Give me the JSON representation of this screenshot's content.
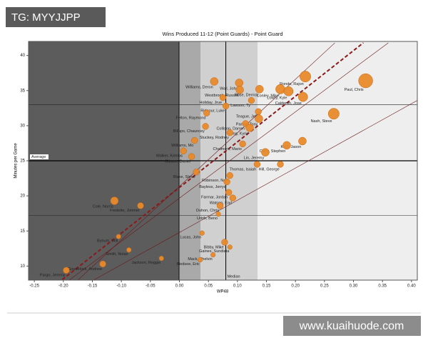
{
  "watermarks": {
    "top": "TG: MYYJJPP",
    "bottom": "www.kuaihuode.com"
  },
  "chart_data": {
    "type": "scatter",
    "title": "Wins Produced 11-12 (Point Guards) - Point Guard",
    "x_label": "WP48",
    "y_label": "Minutes per Game",
    "xlim": [
      -0.26,
      0.41
    ],
    "ylim": [
      8,
      42
    ],
    "xticks": [
      {
        "value": -0.25,
        "label": "-0.25"
      },
      {
        "value": -0.2,
        "label": "-0.20"
      },
      {
        "value": -0.15,
        "label": "-0.15"
      },
      {
        "value": -0.1,
        "label": "-0.10"
      },
      {
        "value": -0.05,
        "label": "-0.05"
      },
      {
        "value": 0,
        "label": "0.00"
      },
      {
        "value": 0.05,
        "label": "0.05"
      },
      {
        "value": 0.1,
        "label": "0.10"
      },
      {
        "value": 0.15,
        "label": "0.15"
      },
      {
        "value": 0.2,
        "label": "0.20"
      },
      {
        "value": 0.25,
        "label": "0.25"
      },
      {
        "value": 0.3,
        "label": "0.30"
      },
      {
        "value": 0.35,
        "label": "0.35"
      },
      {
        "value": 0.4,
        "label": "0.40"
      }
    ],
    "yticks": [
      10,
      15,
      20,
      25,
      30,
      35,
      40
    ],
    "color": "#e8892b",
    "reference_lines": {
      "average": {
        "label": "Average",
        "y": 25
      },
      "median": {
        "label": "Median",
        "x": 0.08
      }
    },
    "hlines": [
      33,
      17.2
    ],
    "trend_lines": [
      {
        "style": "dashed",
        "color": "#8b1a1a",
        "x": [
          -0.202,
          0.317
        ],
        "y": [
          8.06,
          41.8
        ]
      },
      {
        "style": "solid",
        "color": "#6b1a1a",
        "x": [
          -0.175,
          0.268
        ],
        "y": [
          8,
          41.8
        ]
      },
      {
        "style": "solid",
        "color": "#6b1a1a",
        "x": [
          -0.19,
          0.36
        ],
        "y": [
          8,
          41.8
        ]
      },
      {
        "style": "solid",
        "color": "#6b1a1a",
        "x": [
          -0.148,
          0.41
        ],
        "y": [
          8,
          33.6
        ]
      }
    ],
    "point_labels": [
      "Paul, Chris",
      "Rondo, Rajon",
      "Nash, Steve",
      "Williams, Deron",
      "Wall, John",
      "Westbrook, Russell",
      "Rose, Derrick",
      "Conley, Mike",
      "Lowry, Kyle",
      "Calderon, Jose",
      "Holiday, Jrue",
      "Lawson, Ty",
      "Ridnour, Luke",
      "Teague, Jeff",
      "Felton, Raymond",
      "Parker, Tony",
      "Billups, Chauncey",
      "Collison, Darren",
      "Irving, Kyrie",
      "Stuckey, Rodney",
      "Kidd, Jason",
      "Curry, Stephen",
      "Williams, Mo",
      "Walker, Kemba",
      "Gibson, Daniel",
      "Chalmers, Mario",
      "Lin, Jeremy",
      "Thomas, Isaiah",
      "Hill, George",
      "Blake, Steve",
      "Robinson, Nate",
      "Bayless, Jerryd",
      "Farmar, Jordan",
      "Watson, Earl",
      "Duhon, Chris",
      "Udrih, Beno",
      "Cole, Norris",
      "Fredette, Jimmer",
      "Lucas, John",
      "Bibby, Mike",
      "Gaines, Sundiata",
      "Mack, Shelvin",
      "Bledsoe, Eric",
      "Jackson, Reggie",
      "Smith, Nolan",
      "Bynum, Will",
      "Goudelock, Andrew",
      "Pargo, Jeremy"
    ],
    "x": [
      0.321,
      0.217,
      0.266,
      0.06,
      0.103,
      0.104,
      0.138,
      0.174,
      0.188,
      0.213,
      0.075,
      0.124,
      0.08,
      0.136,
      0.047,
      0.137,
      0.045,
      0.114,
      0.121,
      0.087,
      0.212,
      0.185,
      0.026,
      0.007,
      0.021,
      0.109,
      0.148,
      0.134,
      0.174,
      0.029,
      0.087,
      0.082,
      0.085,
      0.092,
      0.07,
      0.067,
      -0.112,
      -0.067,
      0.039,
      0.078,
      0.087,
      0.058,
      0.036,
      -0.031,
      -0.087,
      -0.105,
      -0.132,
      -0.195
    ],
    "y": [
      36.4,
      37.0,
      31.7,
      36.3,
      36.1,
      35.1,
      35.2,
      35.2,
      34.9,
      34.1,
      34.0,
      33.6,
      32.8,
      32.0,
      31.8,
      31.0,
      29.9,
      30.3,
      29.7,
      29.0,
      27.8,
      27.2,
      27.9,
      26.4,
      25.6,
      27.4,
      26.2,
      24.5,
      24.5,
      23.4,
      22.9,
      22.0,
      20.5,
      19.7,
      18.6,
      17.4,
      19.3,
      18.6,
      14.7,
      13.4,
      12.7,
      11.6,
      10.9,
      11.1,
      12.3,
      14.2,
      10.3,
      9.4
    ],
    "sizes": [
      9,
      7,
      7,
      5,
      5,
      5,
      5,
      6,
      6,
      6,
      4,
      4,
      4,
      4,
      4,
      5,
      4,
      4,
      5,
      4,
      5,
      5,
      4,
      4,
      4,
      4,
      5,
      4,
      4,
      4,
      4,
      4,
      4,
      4,
      4,
      3,
      5,
      4,
      3,
      4,
      3,
      3,
      3,
      3,
      3,
      3,
      4,
      4
    ]
  }
}
